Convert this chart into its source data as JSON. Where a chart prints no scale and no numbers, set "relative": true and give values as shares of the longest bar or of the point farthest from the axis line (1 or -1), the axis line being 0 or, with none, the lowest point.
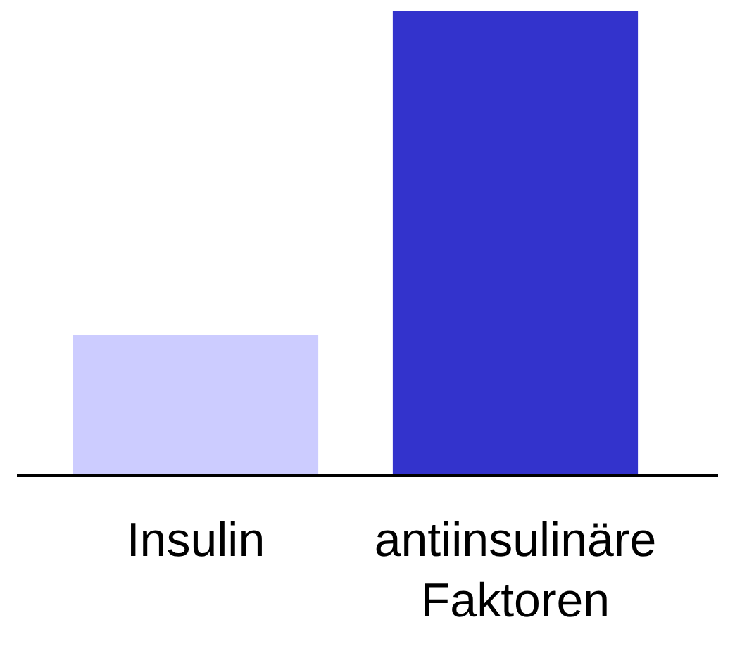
{
  "chart_data": {
    "type": "bar",
    "relative": true,
    "categories": [
      "Insulin",
      "antiinsulinäre Faktoren"
    ],
    "values": [
      0.303,
      1
    ],
    "colors": [
      "#ccccff",
      "#3333cc"
    ]
  }
}
